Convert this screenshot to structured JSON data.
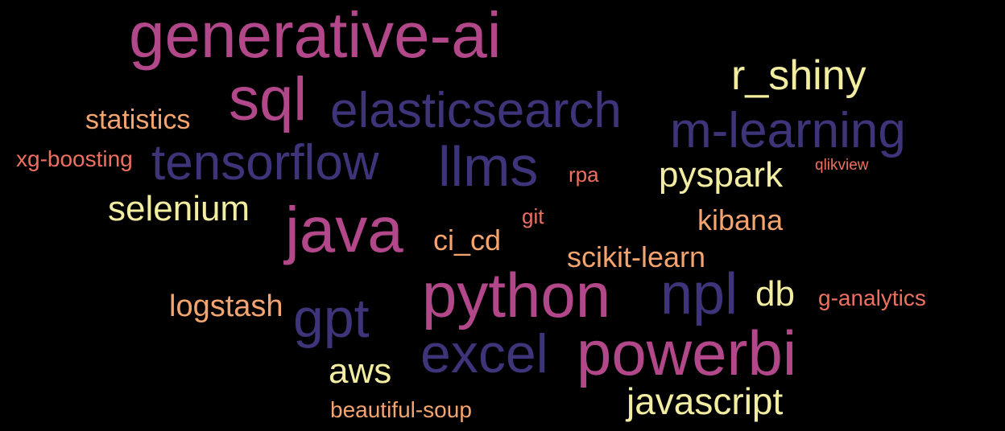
{
  "word_cloud": {
    "background": "#000000",
    "palette": {
      "pink": "#b2478a",
      "navy": "#3d3479",
      "yellow": "#f2eda0",
      "peach": "#f4a46e",
      "salmon": "#ee7060"
    },
    "words": [
      {
        "text": "generative-ai",
        "color": "pink"
      },
      {
        "text": "sql",
        "color": "pink"
      },
      {
        "text": "elasticsearch",
        "color": "navy"
      },
      {
        "text": "r_shiny",
        "color": "yellow"
      },
      {
        "text": "statistics",
        "color": "peach"
      },
      {
        "text": "m-learning",
        "color": "navy"
      },
      {
        "text": "tensorflow",
        "color": "navy"
      },
      {
        "text": "llms",
        "color": "navy"
      },
      {
        "text": "xg-boosting",
        "color": "salmon"
      },
      {
        "text": "rpa",
        "color": "salmon"
      },
      {
        "text": "pyspark",
        "color": "yellow"
      },
      {
        "text": "qlikview",
        "color": "salmon"
      },
      {
        "text": "selenium",
        "color": "yellow"
      },
      {
        "text": "java",
        "color": "pink"
      },
      {
        "text": "git",
        "color": "salmon"
      },
      {
        "text": "kibana",
        "color": "peach"
      },
      {
        "text": "ci_cd",
        "color": "peach"
      },
      {
        "text": "scikit-learn",
        "color": "peach"
      },
      {
        "text": "python",
        "color": "pink"
      },
      {
        "text": "npl",
        "color": "navy"
      },
      {
        "text": "db",
        "color": "yellow"
      },
      {
        "text": "logstash",
        "color": "peach"
      },
      {
        "text": "gpt",
        "color": "navy"
      },
      {
        "text": "g-analytics",
        "color": "salmon"
      },
      {
        "text": "excel",
        "color": "navy"
      },
      {
        "text": "powerbi",
        "color": "pink"
      },
      {
        "text": "aws",
        "color": "yellow"
      },
      {
        "text": "javascript",
        "color": "yellow"
      },
      {
        "text": "beautiful-soup",
        "color": "peach"
      }
    ]
  }
}
